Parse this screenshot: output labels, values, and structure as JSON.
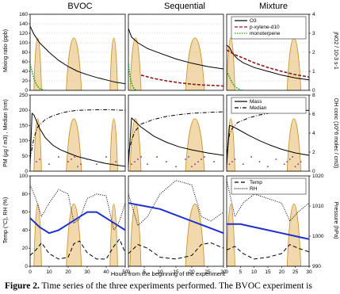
{
  "figure": {
    "caption_label": "Figure 2.",
    "caption_text": " Time series of the three experiments performed. The BVOC experiment is",
    "xlabel": "Hours from the beginning of the experiment",
    "columns": [
      "BVOC",
      "Sequential",
      "Mixture"
    ]
  },
  "colors": {
    "o3": "#000000",
    "pxylene": "#8b1a1a",
    "monoterpene": "#1a9a1a",
    "jno2_fill": "#f1d9ad",
    "jno2_line": "#c98f1f",
    "oh": "#7b2fa0",
    "pressure": "#1f2fd0"
  },
  "chart_data": [
    {
      "type": "line",
      "panel": "top",
      "ylabel_left": "Mixing ratio (ppb)",
      "ylabel_right": "jNO2 / 10-3 s-1",
      "ylim_left": [
        0,
        160
      ],
      "yticks_left": [
        "0",
        "20",
        "40",
        "60",
        "80",
        "100",
        "120",
        "140",
        "160"
      ],
      "ylim_right": [
        0,
        4
      ],
      "yticks_right": [
        "0",
        "1",
        "2",
        "3",
        "4"
      ],
      "legend": [
        "O3",
        "p-xylene-d10",
        "monoterpene"
      ],
      "legend_position": "top-right",
      "series": [
        {
          "name": "O3",
          "column": "BVOC",
          "x": [
            0,
            2,
            5,
            10,
            15,
            20,
            25,
            30,
            35,
            40,
            45,
            50
          ],
          "y": [
            135,
            118,
            100,
            80,
            63,
            50,
            40,
            33,
            27,
            22,
            17,
            14
          ]
        },
        {
          "name": "monoterpene",
          "column": "BVOC",
          "x": [
            0,
            1,
            2,
            3,
            4,
            5,
            6,
            8
          ],
          "y": [
            55,
            40,
            25,
            15,
            8,
            4,
            2,
            0
          ]
        },
        {
          "name": "O3",
          "column": "Sequential",
          "x": [
            0,
            1,
            3,
            6,
            10,
            15,
            20,
            25,
            30
          ],
          "y": [
            130,
            112,
            100,
            88,
            78,
            66,
            57,
            50,
            45
          ]
        },
        {
          "name": "p-xylene-d10",
          "column": "Sequential",
          "x": [
            4,
            8,
            12,
            16,
            20,
            24,
            28,
            30
          ],
          "y": [
            32,
            25,
            20,
            16,
            13,
            11,
            10,
            9
          ]
        },
        {
          "name": "monoterpene",
          "column": "Sequential",
          "x": [
            0,
            0.5,
            1,
            1.5,
            2,
            3
          ],
          "y": [
            55,
            30,
            15,
            6,
            2,
            0
          ]
        },
        {
          "name": "O3",
          "column": "Mixture",
          "x": [
            0,
            1,
            2,
            3,
            4,
            6,
            10,
            15,
            20,
            25,
            30
          ],
          "y": [
            95,
            90,
            80,
            72,
            66,
            58,
            48,
            40,
            32,
            26,
            22
          ]
        },
        {
          "name": "p-xylene-d10",
          "column": "Mixture",
          "x": [
            0,
            3,
            6,
            10,
            15,
            20,
            25,
            30
          ],
          "y": [
            85,
            75,
            68,
            58,
            48,
            40,
            33,
            28
          ]
        },
        {
          "name": "monoterpene",
          "column": "Mixture",
          "x": [
            0,
            1,
            2,
            3,
            4,
            5,
            6
          ],
          "y": [
            40,
            28,
            16,
            8,
            4,
            1,
            0
          ]
        }
      ]
    },
    {
      "type": "line",
      "panel": "middle",
      "ylabel_left": "PM (µg / m3) , Median (nm)",
      "ylabel_right": "OH conc (10^6 molec / cm3)",
      "ylim_left": [
        0,
        250
      ],
      "yticks_left": [
        "0",
        "50",
        "100",
        "150",
        "200",
        "250"
      ],
      "ylim_right": [
        0,
        8
      ],
      "yticks_right": [
        "0",
        "2",
        "4",
        "6",
        "8"
      ],
      "legend": [
        "Mass",
        "Median"
      ],
      "legend_position": "top-right",
      "series": [
        {
          "name": "Mass",
          "column": "BVOC",
          "x": [
            0,
            1,
            2,
            3,
            5,
            8,
            12,
            16,
            20,
            25,
            30,
            35,
            40,
            45,
            50
          ],
          "y": [
            20,
            190,
            185,
            170,
            140,
            110,
            85,
            70,
            60,
            48,
            40,
            32,
            25,
            20,
            16
          ]
        },
        {
          "name": "Median",
          "column": "BVOC",
          "x": [
            0,
            1,
            2,
            4,
            8,
            12,
            16,
            20,
            25,
            30,
            40,
            50
          ],
          "y": [
            40,
            75,
            110,
            145,
            170,
            182,
            190,
            196,
            200,
            201,
            202,
            200
          ]
        },
        {
          "name": "Mass",
          "column": "Sequential",
          "x": [
            0,
            1,
            2,
            4,
            8,
            12,
            16,
            20,
            25,
            30
          ],
          "y": [
            20,
            175,
            165,
            145,
            115,
            95,
            80,
            70,
            60,
            52
          ]
        },
        {
          "name": "Median",
          "column": "Sequential",
          "x": [
            0,
            1,
            2,
            4,
            8,
            12,
            16,
            20,
            25,
            30
          ],
          "y": [
            60,
            100,
            130,
            155,
            170,
            180,
            186,
            190,
            193,
            195
          ]
        },
        {
          "name": "Mass",
          "column": "Mixture",
          "x": [
            0,
            1,
            2,
            4,
            8,
            12,
            16,
            20,
            25,
            30
          ],
          "y": [
            20,
            150,
            148,
            138,
            118,
            100,
            85,
            72,
            60,
            52
          ]
        },
        {
          "name": "Median",
          "column": "Mixture",
          "x": [
            0,
            1,
            2,
            4,
            8,
            12,
            16,
            20,
            25,
            30
          ],
          "y": [
            60,
            120,
            140,
            160,
            175,
            185,
            192,
            196,
            198,
            200
          ]
        }
      ]
    },
    {
      "type": "line",
      "panel": "bottom",
      "ylabel_left": "Temp (°C), RH (%)",
      "ylabel_right": "Pressure (hPa)",
      "ylim_left": [
        0,
        100
      ],
      "yticks_left": [
        "0",
        "20",
        "40",
        "60",
        "80",
        "100"
      ],
      "ylim_right": [
        990,
        1020
      ],
      "yticks_right": [
        "990",
        "1000",
        "1010",
        "1020"
      ],
      "xticks": {
        "BVOC": [
          "0",
          "10",
          "20",
          "30",
          "40",
          "50"
        ],
        "Sequential": [
          "0",
          "5",
          "10",
          "15",
          "20",
          "25",
          "30"
        ],
        "Mixture": [
          "0",
          "5",
          "10",
          "15",
          "20",
          "25",
          "30"
        ]
      },
      "legend": [
        "Temp",
        "RH"
      ],
      "legend_position": "top-right",
      "series": [
        {
          "name": "Temp",
          "column": "BVOC",
          "x": [
            0,
            3,
            6,
            10,
            15,
            20,
            23,
            26,
            30,
            35,
            40,
            44,
            47,
            50
          ],
          "y": [
            12,
            18,
            26,
            14,
            8,
            10,
            25,
            28,
            15,
            8,
            8,
            22,
            30,
            15
          ]
        },
        {
          "name": "RH",
          "column": "BVOC",
          "x": [
            0,
            3,
            6,
            10,
            15,
            20,
            23,
            26,
            30,
            35,
            40,
            44,
            47,
            50
          ],
          "y": [
            90,
            75,
            55,
            70,
            85,
            80,
            48,
            52,
            75,
            80,
            78,
            40,
            50,
            70
          ]
        },
        {
          "name": "Pressure",
          "column": "BVOC",
          "x": [
            0,
            5,
            10,
            15,
            20,
            25,
            30,
            35,
            40,
            45,
            50
          ],
          "y": [
            1006,
            1003,
            1001,
            1002,
            1004,
            1006,
            1008,
            1008,
            1006,
            1004,
            1002
          ]
        },
        {
          "name": "Temp",
          "column": "Sequential",
          "x": [
            0,
            3,
            6,
            10,
            15,
            20,
            23,
            26,
            30
          ],
          "y": [
            14,
            24,
            20,
            10,
            8,
            12,
            24,
            26,
            20
          ]
        },
        {
          "name": "RH",
          "column": "Sequential",
          "x": [
            0,
            3,
            6,
            10,
            15,
            20,
            23,
            26,
            30
          ],
          "y": [
            80,
            45,
            55,
            80,
            95,
            90,
            55,
            50,
            60
          ]
        },
        {
          "name": "Pressure",
          "column": "Sequential",
          "x": [
            0,
            5,
            10,
            15,
            20,
            25,
            30
          ],
          "y": [
            1011,
            1010,
            1009,
            1007,
            1005,
            1003,
            1001
          ]
        },
        {
          "name": "Temp",
          "column": "Mixture",
          "x": [
            0,
            3,
            6,
            10,
            15,
            20,
            23,
            26,
            30
          ],
          "y": [
            18,
            22,
            14,
            8,
            10,
            14,
            24,
            20,
            16
          ]
        },
        {
          "name": "RH",
          "column": "Mixture",
          "x": [
            0,
            3,
            6,
            10,
            15,
            20,
            23,
            26,
            30
          ],
          "y": [
            95,
            55,
            70,
            80,
            75,
            70,
            50,
            60,
            70
          ]
        },
        {
          "name": "Pressure",
          "column": "Mixture",
          "x": [
            0,
            5,
            10,
            15,
            20,
            25,
            30
          ],
          "y": [
            1004,
            1004,
            1003,
            1002,
            1001,
            1000,
            999
          ]
        }
      ]
    }
  ]
}
